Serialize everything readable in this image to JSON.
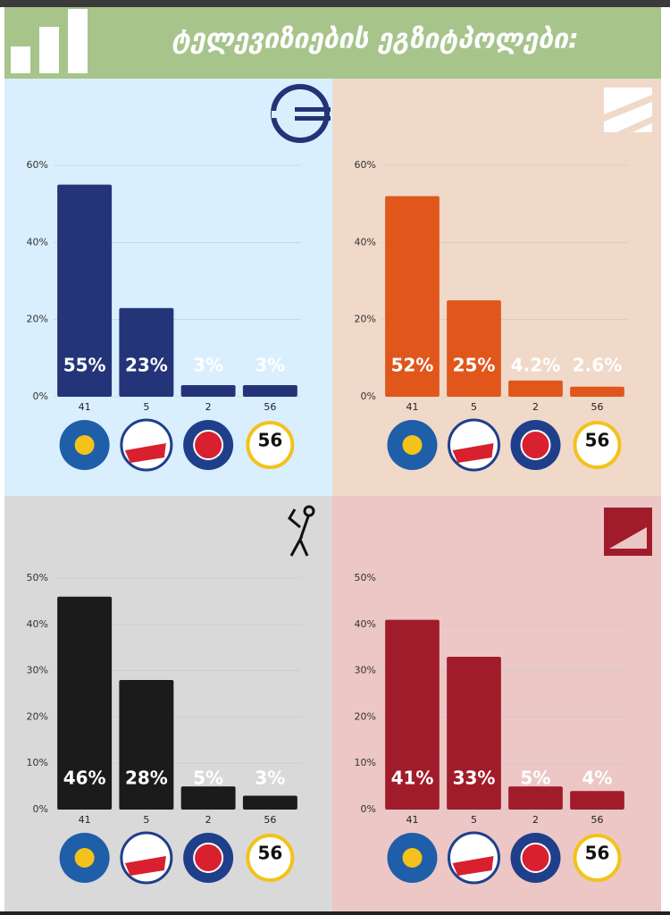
{
  "header": {
    "title": "ტელევიზიების ეგზიტპოლები:"
  },
  "party_logo_text": "56",
  "chart_data": [
    {
      "type": "bar",
      "background": "#d9effd",
      "color": "#233479",
      "categories": [
        "41",
        "5",
        "2",
        "56"
      ],
      "values": [
        55,
        23,
        3,
        3
      ],
      "value_labels": [
        "55%",
        "23%",
        "3%",
        "3%"
      ],
      "ylim": [
        0,
        60
      ],
      "yticks": [
        {
          "value": 0,
          "label": "0%"
        },
        {
          "value": 20,
          "label": "20%"
        },
        {
          "value": 40,
          "label": "40%"
        },
        {
          "value": 60,
          "label": "60%"
        }
      ],
      "grid": true
    },
    {
      "type": "bar",
      "background": "#f0d9c8",
      "color": "#e0561b",
      "categories": [
        "41",
        "5",
        "2",
        "56"
      ],
      "values": [
        52,
        25,
        4.2,
        2.6
      ],
      "value_labels": [
        "52%",
        "25%",
        "4.2%",
        "2.6%"
      ],
      "ylim": [
        0,
        60
      ],
      "yticks": [
        {
          "value": 0,
          "label": "0%"
        },
        {
          "value": 20,
          "label": "20%"
        },
        {
          "value": 40,
          "label": "40%"
        },
        {
          "value": 60,
          "label": "60%"
        }
      ],
      "grid": true
    },
    {
      "type": "bar",
      "background": "#d9d9d9",
      "color": "#1b1b1b",
      "categories": [
        "41",
        "5",
        "2",
        "56"
      ],
      "values": [
        46,
        28,
        5,
        3
      ],
      "value_labels": [
        "46%",
        "28%",
        "5%",
        "3%"
      ],
      "ylim": [
        0,
        50
      ],
      "yticks": [
        {
          "value": 0,
          "label": "0%"
        },
        {
          "value": 10,
          "label": "10%"
        },
        {
          "value": 20,
          "label": "20%"
        },
        {
          "value": 30,
          "label": "30%"
        },
        {
          "value": 40,
          "label": "40%"
        },
        {
          "value": 50,
          "label": "50%"
        }
      ],
      "grid": true
    },
    {
      "type": "bar",
      "background": "#ecc7c6",
      "color": "#a11c2b",
      "categories": [
        "41",
        "5",
        "2",
        "56"
      ],
      "values": [
        41,
        33,
        5,
        4
      ],
      "value_labels": [
        "41%",
        "33%",
        "5%",
        "4%"
      ],
      "ylim": [
        0,
        50
      ],
      "yticks": [
        {
          "value": 0,
          "label": "0%"
        },
        {
          "value": 10,
          "label": "10%"
        },
        {
          "value": 20,
          "label": "20%"
        },
        {
          "value": 30,
          "label": "30%"
        },
        {
          "value": 40,
          "label": "40%"
        },
        {
          "value": 50,
          "label": "50%"
        }
      ],
      "grid": true
    }
  ]
}
